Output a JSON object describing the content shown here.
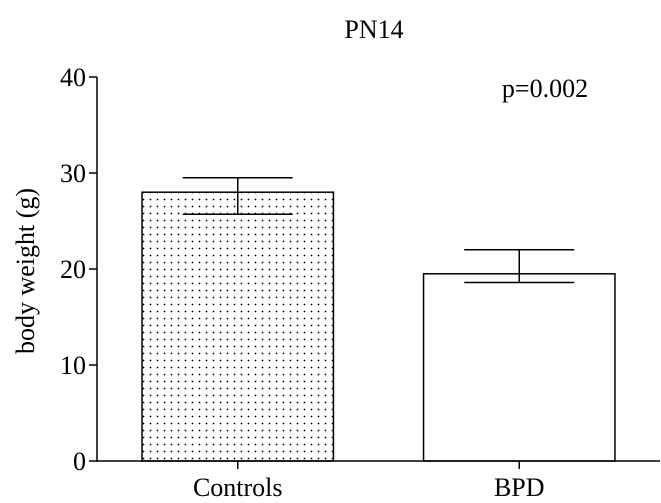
{
  "chart_data": {
    "type": "bar",
    "title": "PN14",
    "ylabel": "body weight (g)",
    "xlabel": "",
    "categories": [
      "Controls",
      "BPD"
    ],
    "values": [
      28.0,
      19.5
    ],
    "error_upper": [
      29.5,
      22.0
    ],
    "error_lower": [
      25.7,
      18.6
    ],
    "bar_fill": [
      "dotted",
      "white"
    ],
    "ylim": [
      0,
      40
    ],
    "yticks": [
      0,
      10,
      20,
      30,
      40
    ],
    "annotation": "p=0.002",
    "grid": false,
    "legend": "none",
    "colors": {
      "axis": "#000000",
      "bar_stroke": "#000000",
      "background": "#ffffff"
    }
  }
}
